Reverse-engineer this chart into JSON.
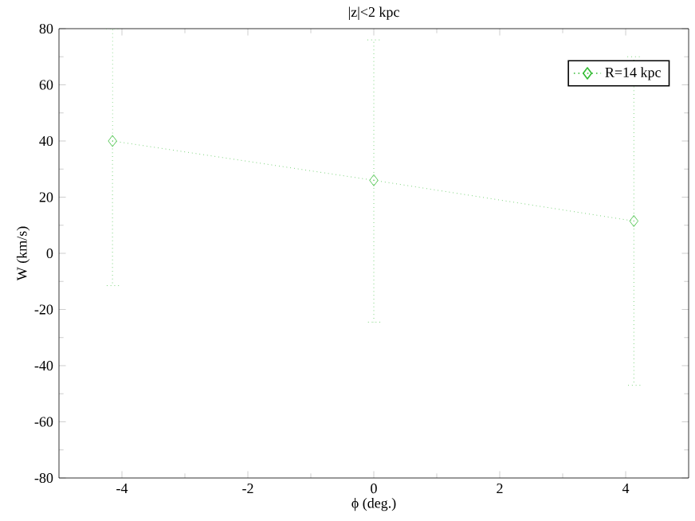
{
  "chart_data": {
    "type": "line",
    "title": "|z|<2 kpc",
    "xlabel": "ϕ (deg.)",
    "ylabel": "W (km/s)",
    "x": [
      -4.15,
      0,
      4.13
    ],
    "series": [
      {
        "name": "R=14 kpc",
        "color": "#33bb33",
        "values": [
          40,
          26,
          11.5
        ],
        "errors": [
          [
            -11.5,
            80
          ],
          [
            -24.5,
            76
          ],
          [
            -47,
            70
          ]
        ]
      }
    ],
    "xlim": [
      -5,
      5
    ],
    "xticks": [
      -4,
      -2,
      0,
      2,
      4
    ],
    "ylim": [
      -80,
      80
    ],
    "yticks": [
      -80,
      -60,
      -40,
      -20,
      0,
      20,
      40,
      60,
      80
    ],
    "legend": "top right",
    "marker": "diamond",
    "line_style": "dotted",
    "grid": false
  }
}
